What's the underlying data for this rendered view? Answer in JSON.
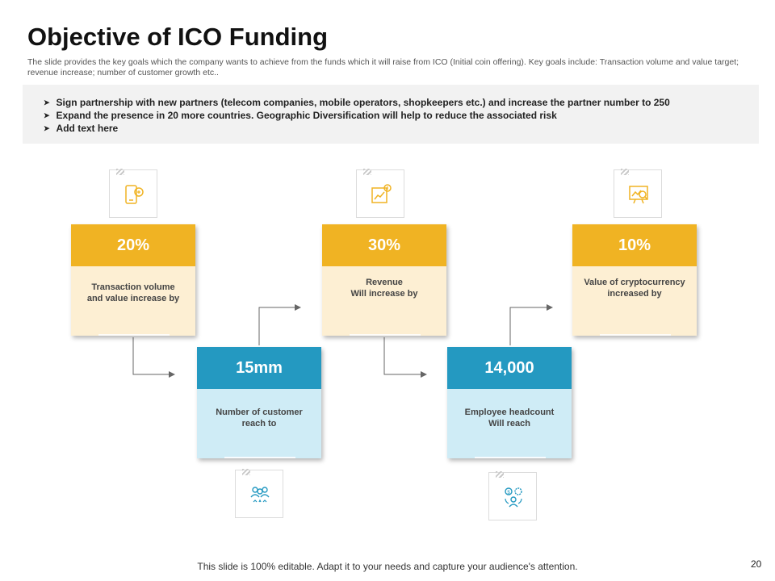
{
  "slide": {
    "title": "Objective of ICO Funding",
    "subtitle": "The slide provides the key goals which the company wants to achieve from the funds which it will raise from ICO (Initial coin offering). Key goals include: Transaction volume and value target; revenue increase; number of customer growth etc..",
    "page_number": "20",
    "footer": "This slide is 100% editable. Adapt it to your needs and capture your audience's attention."
  },
  "bullets": [
    "Sign partnership with new partners (telecom companies, mobile operators, shopkeepers etc.) and increase the partner number to 250",
    "Expand the presence in 20 more countries. Geographic Diversification will help to reduce the associated risk",
    "Add text here"
  ],
  "cards": [
    {
      "value": "20%",
      "lines": [
        "Transaction volume",
        "and value increase by"
      ],
      "icon": "mobile-payment-icon",
      "color": "#f0b323"
    },
    {
      "value": "15mm",
      "lines": [
        "Number of customer",
        "reach to"
      ],
      "icon": "customers-group-icon",
      "color": "#2499c1"
    },
    {
      "value": "30%",
      "lines": [
        "Revenue",
        "Will increase by"
      ],
      "icon": "revenue-growth-icon",
      "color": "#f0b323"
    },
    {
      "value": "14,000",
      "lines": [
        "Employee headcount",
        "Will reach"
      ],
      "icon": "employee-finance-icon",
      "color": "#2499c1"
    },
    {
      "value": "10%",
      "lines": [
        "Value of cryptocurrency",
        "increased by"
      ],
      "icon": "crypto-analysis-icon",
      "color": "#f0b323"
    }
  ]
}
